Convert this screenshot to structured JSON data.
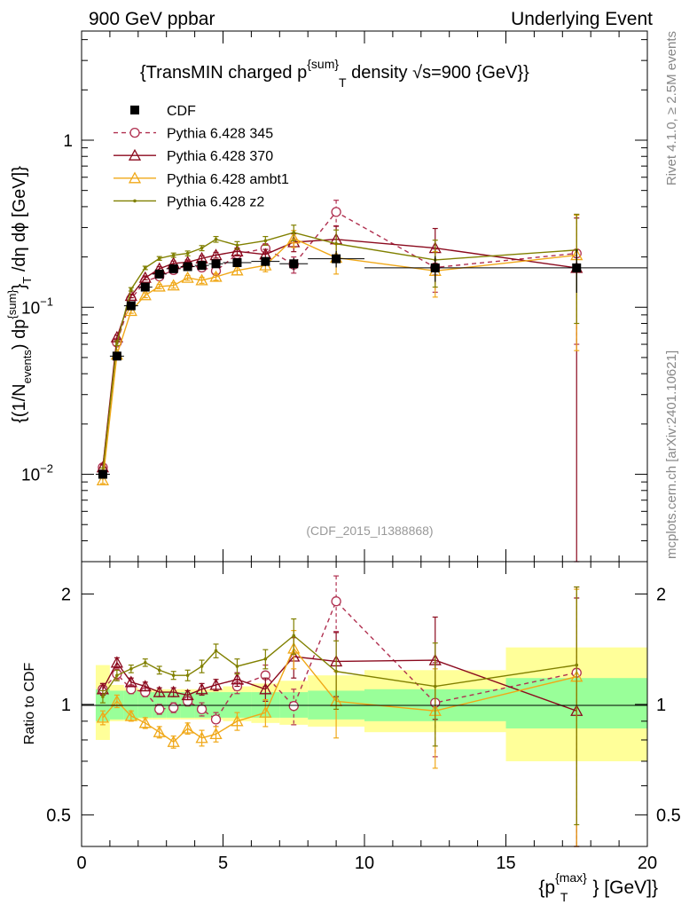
{
  "header": {
    "left_label": "900 GeV ppbar",
    "right_label": "Underlying Event"
  },
  "side_labels": {
    "rivet": "Rivet 4.1.0, ≥ 2.5M events",
    "mcplots": "mcplots.cern.ch [arXiv:2401.10621]"
  },
  "title": {
    "pre": "{TransMIN charged p",
    "sup": "{sum}",
    "sub": "T",
    "mid": " density ",
    "sqrt": "√",
    "post": "s=900 {GeV}}"
  },
  "watermark": "(CDF_2015_I1388868)",
  "axes": {
    "ylabel_main": "{(1/N_{events}) dp^{sum}_T /dη dϕ [GeV]}",
    "ylabel_main_parts": {
      "a": "{(1/N",
      "a_sub": "events",
      "b": ") dp",
      "b_sup": "{sum}",
      "c": "}",
      "c_sub": "T",
      "d": " /dη  dϕ [GeV]}"
    },
    "ylabel_ratio": "Ratio to CDF",
    "xlabel_parts": {
      "a": "{p",
      "a_sup": "{max}",
      "a_sub": "T",
      "b": "} [GeV]}"
    },
    "x_ticks": [
      "0",
      "5",
      "10",
      "15",
      "20"
    ],
    "main_y_ticks": [
      {
        "value": 0.01,
        "base": "10",
        "exp": "−2"
      },
      {
        "value": 0.1,
        "base": "10",
        "exp": "−1"
      },
      {
        "value": 1,
        "base": "1",
        "exp": ""
      }
    ],
    "ratio_y_ticks": [
      {
        "value": 0.5,
        "label": "0.5"
      },
      {
        "value": 1,
        "label": "1"
      },
      {
        "value": 2,
        "label": "2"
      }
    ]
  },
  "legend": [
    {
      "key": "cdf",
      "label": "CDF"
    },
    {
      "key": "p345",
      "label": "Pythia 6.428 345"
    },
    {
      "key": "p370",
      "label": "Pythia 6.428 370"
    },
    {
      "key": "ambt1",
      "label": "Pythia 6.428 ambt1"
    },
    {
      "key": "z2",
      "label": "Pythia 6.428 z2"
    }
  ],
  "colors": {
    "cdf": "#000000",
    "p345": "#b03050",
    "p370": "#8b0a1e",
    "ambt1": "#f0a818",
    "z2": "#808000",
    "band_inner": "#99ff99",
    "band_outer": "#ffff99",
    "watermark": "#999999",
    "side_label": "#888888"
  },
  "chart_data": [
    {
      "type": "line",
      "panel": "main",
      "title": "{TransMIN charged p^{sum}_T density √s=900 {GeV}}",
      "xlabel": "{p^{max}_T} [GeV]}",
      "ylabel": "{(1/N_{events}) dp^{sum}_T /dη dϕ [GeV]}",
      "xlim": [
        0,
        20
      ],
      "ylim": [
        0.003,
        4.5
      ],
      "yscale": "log",
      "series": [
        {
          "key": "cdf",
          "name": "CDF",
          "style": "square",
          "x": [
            0.75,
            1.25,
            1.75,
            2.25,
            2.75,
            3.25,
            3.75,
            4.25,
            4.75,
            5.5,
            6.5,
            7.5,
            9.0,
            12.5,
            17.5
          ],
          "y": [
            0.01,
            0.051,
            0.102,
            0.132,
            0.158,
            0.17,
            0.175,
            0.178,
            0.182,
            0.185,
            0.188,
            0.182,
            0.195,
            0.172,
            0.172
          ],
          "x_err": [
            0.25,
            0.25,
            0.25,
            0.25,
            0.25,
            0.25,
            0.25,
            0.25,
            0.25,
            0.5,
            0.5,
            0.5,
            1.0,
            2.5,
            2.5
          ],
          "y_err": [
            0.0004,
            0.002,
            0.004,
            0.005,
            0.006,
            0.006,
            0.007,
            0.007,
            0.008,
            0.009,
            0.012,
            0.015,
            0.022,
            0.03,
            0.05
          ]
        },
        {
          "key": "p345",
          "name": "Pythia 6.428 345",
          "style": "circle",
          "dashed": true,
          "x": [
            0.75,
            1.25,
            1.75,
            2.25,
            2.75,
            3.25,
            3.75,
            4.25,
            4.75,
            5.5,
            6.5,
            7.5,
            9.0,
            12.5,
            17.5
          ],
          "y": [
            0.011,
            0.0615,
            0.112,
            0.143,
            0.153,
            0.167,
            0.178,
            0.173,
            0.165,
            0.208,
            0.225,
            0.18,
            0.372,
            0.173,
            0.21
          ],
          "y_err": [
            0.0004,
            0.002,
            0.003,
            0.004,
            0.005,
            0.005,
            0.006,
            0.007,
            0.008,
            0.01,
            0.015,
            0.02,
            0.065,
            0.05,
            0.15
          ]
        },
        {
          "key": "p370",
          "name": "Pythia 6.428 370",
          "style": "triangle",
          "x": [
            0.75,
            1.25,
            1.75,
            2.25,
            2.75,
            3.25,
            3.75,
            4.25,
            4.75,
            5.5,
            6.5,
            7.5,
            9.0,
            12.5,
            17.5
          ],
          "y": [
            0.011,
            0.066,
            0.117,
            0.15,
            0.17,
            0.183,
            0.186,
            0.196,
            0.205,
            0.216,
            0.207,
            0.245,
            0.255,
            0.226,
            0.172
          ],
          "y_err": [
            0.0004,
            0.002,
            0.003,
            0.004,
            0.005,
            0.006,
            0.006,
            0.007,
            0.008,
            0.01,
            0.015,
            0.03,
            0.05,
            0.07,
            0.17
          ]
        },
        {
          "key": "ambt1",
          "name": "Pythia 6.428 ambt1",
          "style": "triangle",
          "x": [
            0.75,
            1.25,
            1.75,
            2.25,
            2.75,
            3.25,
            3.75,
            4.25,
            4.75,
            5.5,
            6.5,
            7.5,
            9.0,
            12.5,
            17.5
          ],
          "y": [
            0.0092,
            0.052,
            0.095,
            0.118,
            0.133,
            0.135,
            0.15,
            0.145,
            0.152,
            0.166,
            0.178,
            0.258,
            0.198,
            0.165,
            0.205
          ],
          "y_err": [
            0.0004,
            0.002,
            0.003,
            0.004,
            0.004,
            0.005,
            0.005,
            0.006,
            0.007,
            0.01,
            0.015,
            0.03,
            0.04,
            0.05,
            0.15
          ]
        },
        {
          "key": "z2",
          "name": "Pythia 6.428 z2",
          "style": "dot",
          "x": [
            0.75,
            1.25,
            1.75,
            2.25,
            2.75,
            3.25,
            3.75,
            4.25,
            4.75,
            5.5,
            6.5,
            7.5,
            9.0,
            12.5,
            17.5
          ],
          "y": [
            0.0105,
            0.061,
            0.128,
            0.172,
            0.196,
            0.205,
            0.21,
            0.226,
            0.255,
            0.235,
            0.25,
            0.28,
            0.24,
            0.192,
            0.22
          ],
          "y_err": [
            0.0004,
            0.002,
            0.003,
            0.004,
            0.005,
            0.006,
            0.007,
            0.008,
            0.01,
            0.012,
            0.015,
            0.03,
            0.05,
            0.06,
            0.14
          ]
        }
      ]
    },
    {
      "type": "line",
      "panel": "ratio",
      "ylabel": "Ratio to CDF",
      "xlim": [
        0,
        20
      ],
      "ylim": [
        0.41,
        2.45
      ],
      "yscale": "log",
      "bands": {
        "x_low": [
          0.5,
          1.0,
          1.5,
          2.0,
          2.5,
          3.0,
          3.5,
          4.0,
          4.5,
          5.0,
          6.0,
          7.0,
          8.0,
          10.0,
          15.0
        ],
        "x_high": [
          1.0,
          1.5,
          2.0,
          2.5,
          3.0,
          3.5,
          4.0,
          4.5,
          5.0,
          6.0,
          7.0,
          8.0,
          10.0,
          15.0,
          20.0
        ],
        "inner_low": [
          0.9,
          0.91,
          0.91,
          0.92,
          0.92,
          0.92,
          0.92,
          0.92,
          0.92,
          0.92,
          0.92,
          0.92,
          0.91,
          0.9,
          0.86
        ],
        "inner_high": [
          1.1,
          1.09,
          1.09,
          1.08,
          1.08,
          1.08,
          1.08,
          1.08,
          1.08,
          1.08,
          1.08,
          1.08,
          1.09,
          1.1,
          1.18
        ],
        "outer_low": [
          0.8,
          0.9,
          0.9,
          0.91,
          0.91,
          0.91,
          0.91,
          0.91,
          0.91,
          0.9,
          0.89,
          0.88,
          0.87,
          0.84,
          0.7
        ],
        "outer_high": [
          1.28,
          1.13,
          1.11,
          1.1,
          1.1,
          1.1,
          1.1,
          1.1,
          1.1,
          1.12,
          1.14,
          1.16,
          1.2,
          1.24,
          1.43
        ]
      },
      "series": [
        {
          "key": "p345",
          "x": [
            0.75,
            1.25,
            1.75,
            2.25,
            2.75,
            3.25,
            3.75,
            4.25,
            4.75,
            5.5,
            6.5,
            7.5,
            9.0,
            12.5,
            17.5
          ],
          "y": [
            1.1,
            1.21,
            1.1,
            1.08,
            0.97,
            0.98,
            1.02,
            0.97,
            0.91,
            1.12,
            1.2,
            0.99,
            1.91,
            1.01,
            1.22
          ],
          "y_err": [
            0.04,
            0.04,
            0.03,
            0.03,
            0.03,
            0.03,
            0.03,
            0.04,
            0.04,
            0.05,
            0.08,
            0.11,
            0.33,
            0.29,
            0.87
          ]
        },
        {
          "key": "p370",
          "x": [
            0.75,
            1.25,
            1.75,
            2.25,
            2.75,
            3.25,
            3.75,
            4.25,
            4.75,
            5.5,
            6.5,
            7.5,
            9.0,
            12.5,
            17.5
          ],
          "y": [
            1.1,
            1.3,
            1.15,
            1.12,
            1.08,
            1.08,
            1.06,
            1.1,
            1.13,
            1.17,
            1.1,
            1.35,
            1.31,
            1.32,
            0.96
          ],
          "y_err": [
            0.04,
            0.04,
            0.03,
            0.03,
            0.03,
            0.03,
            0.03,
            0.04,
            0.04,
            0.05,
            0.08,
            0.17,
            0.26,
            0.41,
            0.99
          ]
        },
        {
          "key": "ambt1",
          "x": [
            0.75,
            1.25,
            1.75,
            2.25,
            2.75,
            3.25,
            3.75,
            4.25,
            4.75,
            5.5,
            6.5,
            7.5,
            9.0,
            12.5,
            17.5
          ],
          "y": [
            0.92,
            1.02,
            0.93,
            0.89,
            0.84,
            0.79,
            0.86,
            0.81,
            0.83,
            0.9,
            0.95,
            1.42,
            1.02,
            0.96,
            1.19
          ],
          "y_err": [
            0.04,
            0.04,
            0.03,
            0.03,
            0.03,
            0.03,
            0.03,
            0.04,
            0.04,
            0.05,
            0.08,
            0.17,
            0.21,
            0.29,
            0.87
          ]
        },
        {
          "key": "z2",
          "x": [
            0.75,
            1.25,
            1.75,
            2.25,
            2.75,
            3.25,
            3.75,
            4.25,
            4.75,
            5.5,
            6.5,
            7.5,
            9.0,
            12.5,
            17.5
          ],
          "y": [
            1.05,
            1.2,
            1.25,
            1.3,
            1.24,
            1.2,
            1.2,
            1.27,
            1.4,
            1.27,
            1.33,
            1.54,
            1.23,
            1.12,
            1.28
          ],
          "y_err": [
            0.04,
            0.04,
            0.03,
            0.03,
            0.03,
            0.03,
            0.04,
            0.05,
            0.06,
            0.06,
            0.08,
            0.17,
            0.26,
            0.35,
            0.81
          ]
        }
      ]
    }
  ]
}
